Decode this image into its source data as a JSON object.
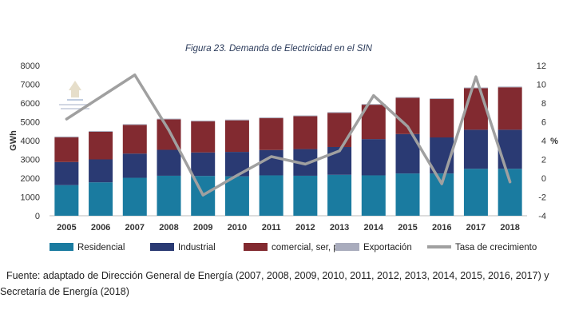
{
  "chart_data": {
    "type": "bar",
    "title": "Figura 23. Demanda de Electricidad en el SIN",
    "ylabel": "GWh",
    "y2label": "%",
    "ylim": [
      0,
      8000
    ],
    "y2lim": [
      -4,
      12
    ],
    "yticks": [
      "0",
      "1000",
      "2000",
      "3000",
      "4000",
      "5000",
      "6000",
      "7000",
      "8000"
    ],
    "y2ticks": [
      "-4",
      "-2",
      "0",
      "2",
      "4",
      "6",
      "8",
      "10",
      "12"
    ],
    "categories": [
      "2005",
      "2006",
      "2007",
      "2008",
      "2009",
      "2010",
      "2011",
      "2012",
      "2013",
      "2014",
      "2015",
      "2016",
      "2017",
      "2018"
    ],
    "stacked": true,
    "series": [
      {
        "name": "Residencial",
        "color": "#1a7ba0",
        "values": [
          1630,
          1780,
          2020,
          2130,
          2120,
          2100,
          2150,
          2130,
          2180,
          2150,
          2250,
          2250,
          2500,
          2500
        ]
      },
      {
        "name": "Industrial",
        "color": "#2a3a73",
        "values": [
          1230,
          1220,
          1290,
          1380,
          1250,
          1300,
          1350,
          1420,
          1480,
          1930,
          2100,
          1920,
          2080,
          2080
        ]
      },
      {
        "name": "comercial, ser, pub",
        "color": "#822a30",
        "values": [
          1320,
          1470,
          1530,
          1620,
          1660,
          1680,
          1700,
          1750,
          1820,
          1830,
          1930,
          2050,
          2210,
          2260
        ]
      },
      {
        "name": "Exportación",
        "color": "#a9acbd",
        "values": [
          40,
          40,
          40,
          40,
          40,
          40,
          40,
          40,
          40,
          40,
          40,
          40,
          40,
          40
        ]
      }
    ],
    "line_series": {
      "name": "Tasa de crecimiento",
      "axis": "right",
      "color": "#a0a0a0",
      "values": [
        6.3,
        null,
        11.0,
        5.1,
        -1.8,
        0.3,
        2.3,
        1.5,
        2.9,
        8.8,
        5.5,
        -0.6,
        10.8,
        -0.4
      ]
    },
    "legend_position": "bottom",
    "grid": false
  },
  "source_note": "Fuente: adaptado de Dirección General de Energía (2007, 2008, 2009, 2010, 2011, 2012, 2013, 2014, 2015, 2016, 2017) y Secretaría de Energía (2018)"
}
